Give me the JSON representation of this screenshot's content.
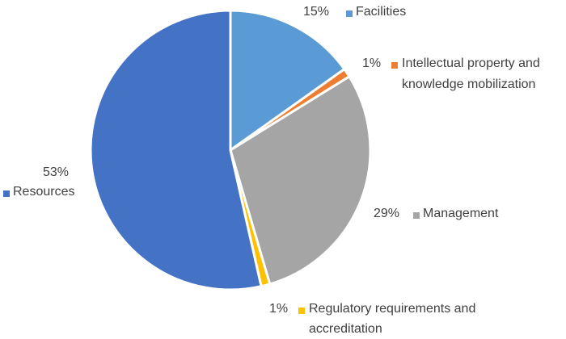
{
  "chart_data": {
    "type": "pie",
    "slices": [
      {
        "label": "Facilities",
        "value": 15,
        "value_label": "15%",
        "color": "#5B9BD5"
      },
      {
        "label": "Intellectual property and knowledge mobilization",
        "value": 1,
        "value_label": "1%",
        "color": "#ED7D31"
      },
      {
        "label": "Management",
        "value": 29,
        "value_label": "29%",
        "color": "#A5A5A5"
      },
      {
        "label": "Regulatory requirements and accreditation",
        "value": 1,
        "value_label": "1%",
        "color": "#FFC000"
      },
      {
        "label": "Resources",
        "value": 53,
        "value_label": "53%",
        "color": "#4472C4"
      }
    ],
    "start_angle": "12 o'clock",
    "direction": "clockwise",
    "slice_separator": "#ffffff",
    "legend": "none",
    "labels": "outside, percent above/beside with colored square marker and category name"
  }
}
